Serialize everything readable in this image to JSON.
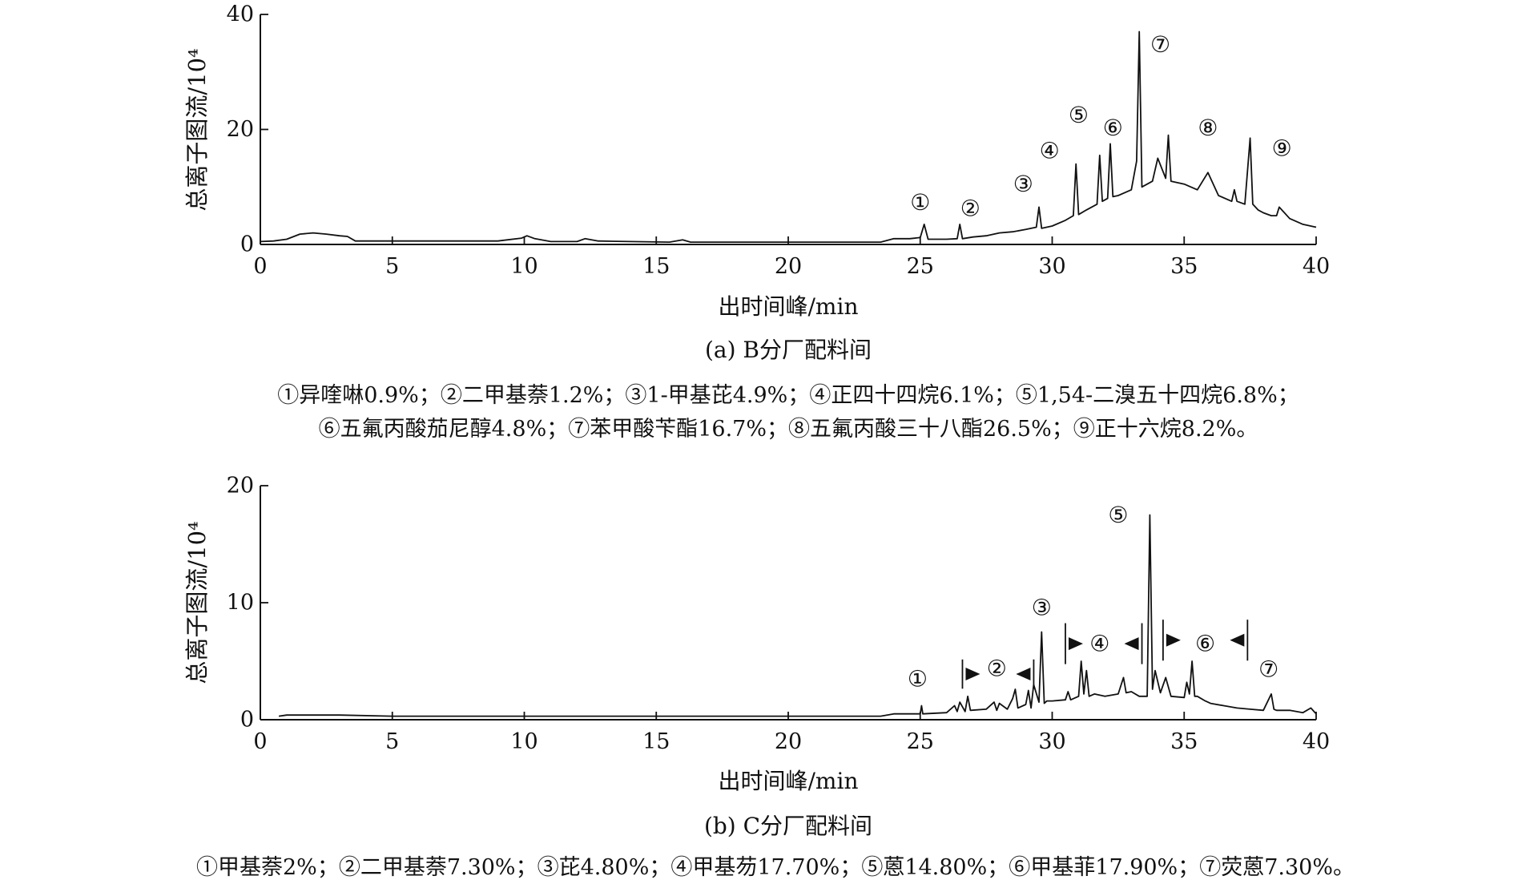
{
  "chart_data": [
    {
      "type": "line",
      "title": "",
      "caption": "(a) B分厂配料间",
      "xlabel": "出时间峰/min",
      "ylabel": "总离子图流/10⁴",
      "xlim": [
        0,
        40
      ],
      "ylim": [
        0,
        40
      ],
      "xticks": [
        "0",
        "5",
        "10",
        "15",
        "20",
        "25",
        "30",
        "35",
        "40"
      ],
      "yticks": [
        "0",
        "20",
        "40"
      ],
      "series": [
        {
          "x": [
            0,
            0.5,
            1,
            1.5,
            2,
            2.5,
            3,
            3.3,
            3.6,
            5,
            7,
            9,
            9.9,
            10.1,
            10.4,
            11,
            12,
            12.3,
            12.8,
            14,
            15.5,
            16,
            16.3,
            18,
            20,
            22,
            23.5,
            24,
            24.6,
            25,
            25.15,
            25.3,
            26,
            26.4,
            26.5,
            26.6,
            27,
            27.5,
            28,
            28.5,
            29,
            29.4,
            29.5,
            29.6,
            30,
            30.5,
            30.8,
            30.9,
            31,
            31.3,
            31.7,
            31.8,
            31.9,
            32.1,
            32.2,
            32.3,
            32.5,
            33,
            33.2,
            33.3,
            33.4,
            33.8,
            34,
            34.3,
            34.4,
            34.5,
            35,
            35.5,
            35.9,
            36.3,
            36.8,
            36.9,
            37,
            37.3,
            37.5,
            37.6,
            37.8,
            38,
            38.3,
            38.5,
            38.6,
            39,
            39.5,
            40
          ],
          "y": [
            0.5,
            0.6,
            0.9,
            1.8,
            2.0,
            1.8,
            1.5,
            1.4,
            0.6,
            0.6,
            0.6,
            0.6,
            1.1,
            1.5,
            1.0,
            0.5,
            0.5,
            1.0,
            0.6,
            0.5,
            0.4,
            0.8,
            0.4,
            0.4,
            0.4,
            0.4,
            0.4,
            1.0,
            1.0,
            1.2,
            3.5,
            0.9,
            0.9,
            1.0,
            3.5,
            1.0,
            1.3,
            1.5,
            2.0,
            2.2,
            2.6,
            3.0,
            6.5,
            2.8,
            3.2,
            4.2,
            5.0,
            14.0,
            5.2,
            6.0,
            7.0,
            15.5,
            7.5,
            8.0,
            17.5,
            8.3,
            8.5,
            9.5,
            14.5,
            37.0,
            10.0,
            11.0,
            15.0,
            11.5,
            19.0,
            11.0,
            10.5,
            9.5,
            12.5,
            8.5,
            7.5,
            9.5,
            7.5,
            7.0,
            18.5,
            7.0,
            6.0,
            5.5,
            5.0,
            5.0,
            6.5,
            4.5,
            3.5,
            3.0
          ]
        }
      ],
      "peak_markers": [
        {
          "label": "①",
          "x": 25.0,
          "y": 7.3
        },
        {
          "label": "②",
          "x": 26.9,
          "y": 6.3
        },
        {
          "label": "③",
          "x": 28.9,
          "y": 10.5
        },
        {
          "label": "④",
          "x": 29.9,
          "y": 16.3
        },
        {
          "label": "⑤",
          "x": 31.0,
          "y": 22.5
        },
        {
          "label": "⑥",
          "x": 32.3,
          "y": 20.3
        },
        {
          "label": "⑦",
          "x": 34.1,
          "y": 34.8
        },
        {
          "label": "⑧",
          "x": 35.9,
          "y": 20.3
        },
        {
          "label": "⑨",
          "x": 38.7,
          "y": 16.7
        }
      ],
      "legend_lines": [
        "①异喹啉0.9%；②二甲基萘1.2%；③1-甲基芘4.9%；④正四十四烷6.1%；⑤1,54-二溴五十四烷6.8%；",
        "⑥五氟丙酸茄尼醇4.8%；⑦苯甲酸苄酯16.7%；⑧五氟丙酸三十八酯26.5%；⑨正十六烷8.2%。"
      ]
    },
    {
      "type": "line",
      "title": "",
      "caption": "(b) C分厂配料间",
      "xlabel": "出时间峰/min",
      "ylabel": "总离子图流/10⁴",
      "xlim": [
        0,
        40
      ],
      "ylim": [
        0,
        20
      ],
      "xticks": [
        "0",
        "5",
        "10",
        "15",
        "20",
        "25",
        "30",
        "35",
        "40"
      ],
      "yticks": [
        "0",
        "10",
        "20"
      ],
      "series": [
        {
          "x": [
            0.7,
            1,
            3,
            5,
            10,
            15,
            20,
            23.5,
            24,
            25,
            25.05,
            25.1,
            26,
            26.3,
            26.4,
            26.5,
            26.7,
            26.8,
            26.9,
            27.5,
            27.8,
            27.9,
            28.0,
            28.3,
            28.5,
            28.6,
            28.7,
            29.0,
            29.1,
            29.2,
            29.3,
            29.5,
            29.6,
            29.7,
            29.8,
            30.0,
            30.5,
            30.6,
            30.7,
            31.0,
            31.1,
            31.2,
            31.3,
            31.4,
            31.6,
            32.0,
            32.5,
            32.7,
            32.8,
            33.0,
            33.3,
            33.6,
            33.7,
            33.8,
            33.9,
            34.1,
            34.3,
            34.5,
            35.0,
            35.1,
            35.2,
            35.3,
            35.4,
            35.5,
            35.8,
            36.0,
            36.5,
            37.0,
            37.5,
            38.0,
            38.3,
            38.4,
            38.5,
            39.0,
            39.5,
            39.8,
            40
          ],
          "y": [
            0.3,
            0.4,
            0.4,
            0.3,
            0.3,
            0.3,
            0.3,
            0.3,
            0.5,
            0.5,
            1.2,
            0.5,
            0.6,
            1.2,
            0.7,
            1.5,
            0.7,
            2.0,
            0.8,
            0.9,
            1.5,
            0.8,
            1.4,
            0.9,
            1.8,
            2.6,
            1.0,
            1.3,
            2.5,
            1.0,
            3.0,
            1.5,
            7.5,
            1.4,
            1.6,
            1.6,
            1.7,
            2.4,
            1.7,
            2.0,
            5.0,
            2.2,
            4.2,
            2.0,
            2.2,
            2.0,
            2.2,
            3.6,
            2.3,
            2.4,
            2.0,
            2.0,
            17.5,
            2.6,
            4.2,
            2.3,
            3.6,
            2.0,
            1.9,
            3.2,
            2.2,
            5.0,
            2.0,
            2.0,
            1.6,
            1.4,
            1.2,
            1.0,
            0.9,
            0.8,
            2.2,
            0.9,
            0.8,
            0.8,
            0.6,
            1.0,
            0.5
          ]
        }
      ],
      "peak_markers": [
        {
          "label": "①",
          "x": 24.9,
          "y": 3.5
        },
        {
          "label": "②",
          "x": 27.9,
          "y": 4.4
        },
        {
          "label": "③",
          "x": 29.6,
          "y": 9.6
        },
        {
          "label": "④",
          "x": 31.8,
          "y": 6.5
        },
        {
          "label": "⑤",
          "x": 32.5,
          "y": 17.5
        },
        {
          "label": "⑥",
          "x": 35.8,
          "y": 6.5
        },
        {
          "label": "⑦",
          "x": 38.2,
          "y": 4.3
        }
      ],
      "range_brackets": [
        {
          "x1": 26.6,
          "x2": 29.3,
          "y": 3.9,
          "height": 2.5
        },
        {
          "x1": 30.5,
          "x2": 33.4,
          "y": 6.5,
          "height": 3.5
        },
        {
          "x1": 34.2,
          "x2": 37.4,
          "y": 6.8,
          "height": 3.5
        }
      ],
      "legend_lines": [
        "①甲基萘2%；②二甲基萘7.30%；③芘4.80%；④甲基芴17.70%；⑤蒽14.80%；⑥甲基菲17.90%；⑦荧蒽7.30%。"
      ]
    }
  ]
}
